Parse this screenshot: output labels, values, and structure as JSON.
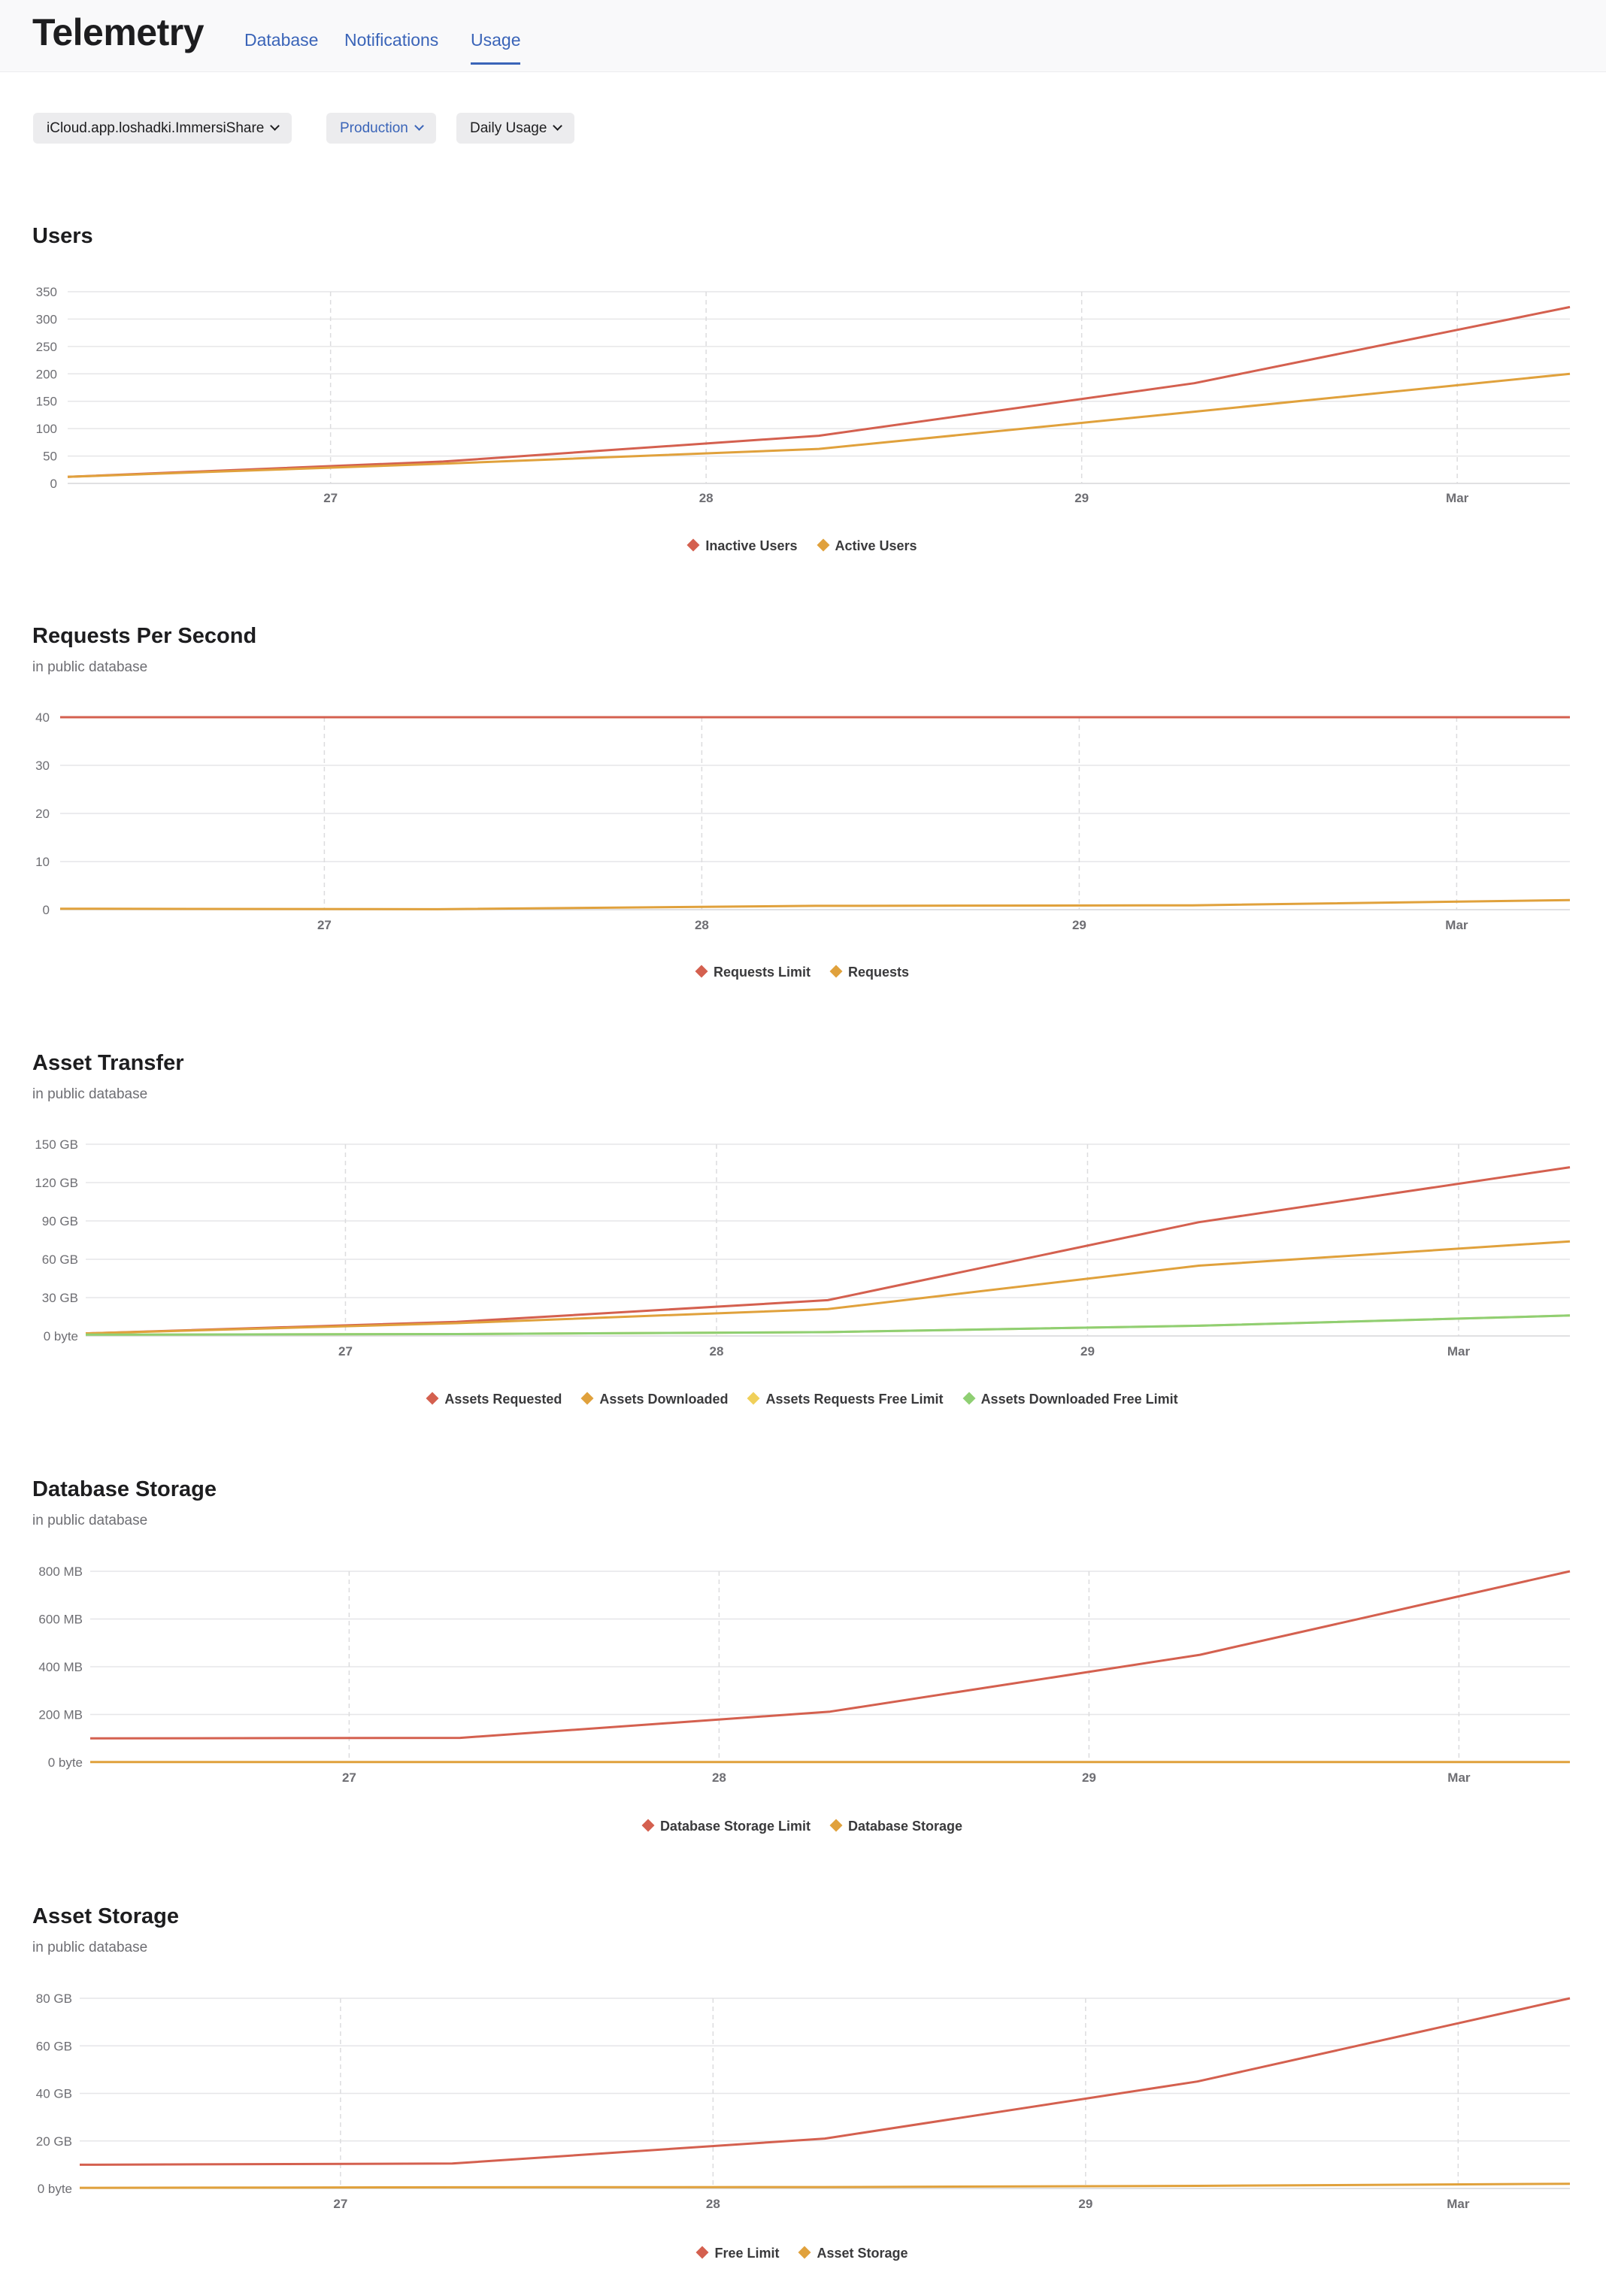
{
  "header": {
    "title": "Telemetry",
    "tabs": [
      {
        "label": "Database"
      },
      {
        "label": "Notifications"
      },
      {
        "label": "Usage"
      }
    ],
    "active_tab": "Usage"
  },
  "filters": {
    "container": "iCloud.app.loshadki.ImmersiShare",
    "environment": "Production",
    "period": "Daily Usage"
  },
  "colors": {
    "red": "#d4604f",
    "orange": "#e0a13c",
    "yellow": "#f0d05a",
    "green": "#8fcf73",
    "accent": "#3a64b8"
  },
  "chart_data": [
    {
      "id": "users",
      "type": "line",
      "title": "Users",
      "subtitle": "",
      "x_ticks": [
        "27",
        "28",
        "29",
        "Mar"
      ],
      "x_tick_days": [
        1,
        2,
        3,
        4
      ],
      "y_ticks": [
        "0",
        "50",
        "100",
        "150",
        "200",
        "250",
        "300",
        "350"
      ],
      "ylim": [
        0,
        350
      ],
      "xlim": [
        0.3,
        4.3
      ],
      "series": [
        {
          "name": "Inactive Users",
          "color": "#d4604f",
          "x": [
            0.3,
            1.3,
            2.3,
            3.3,
            4.3
          ],
          "values": [
            12,
            40,
            87,
            183,
            322
          ]
        },
        {
          "name": "Active Users",
          "color": "#e0a13c",
          "x": [
            0.3,
            1.3,
            2.3,
            3.3,
            4.3
          ],
          "values": [
            12,
            36,
            63,
            131,
            200
          ]
        }
      ]
    },
    {
      "id": "requests",
      "type": "line",
      "title": "Requests Per Second",
      "subtitle": "in public database",
      "x_ticks": [
        "27",
        "28",
        "29",
        "Mar"
      ],
      "x_tick_days": [
        1,
        2,
        3,
        4
      ],
      "y_ticks": [
        "0",
        "10",
        "20",
        "30",
        "40"
      ],
      "ylim": [
        0,
        40
      ],
      "xlim": [
        0.3,
        4.3
      ],
      "series": [
        {
          "name": "Requests Limit",
          "color": "#d4604f",
          "x": [
            0.3,
            1.3,
            2.3,
            3.3,
            4.3
          ],
          "values": [
            40,
            40,
            40,
            40,
            40
          ]
        },
        {
          "name": "Requests",
          "color": "#e0a13c",
          "x": [
            0.3,
            1.3,
            2.3,
            3.3,
            4.3
          ],
          "values": [
            0.2,
            0.1,
            0.8,
            0.9,
            2
          ]
        }
      ]
    },
    {
      "id": "asset-transfer",
      "type": "line",
      "title": "Asset Transfer",
      "subtitle": "in public database",
      "x_ticks": [
        "27",
        "28",
        "29",
        "Mar"
      ],
      "x_tick_days": [
        1,
        2,
        3,
        4
      ],
      "y_ticks": [
        "0 byte",
        "30 GB",
        "60 GB",
        "90 GB",
        "120 GB",
        "150 GB"
      ],
      "ylim": [
        0,
        150
      ],
      "xlim": [
        0.3,
        4.3
      ],
      "series": [
        {
          "name": "Assets Requested",
          "color": "#d4604f",
          "x": [
            0.3,
            1.3,
            2.3,
            3.3,
            4.3
          ],
          "values": [
            2,
            11,
            28,
            89,
            132
          ]
        },
        {
          "name": "Assets Downloaded",
          "color": "#e0a13c",
          "x": [
            0.3,
            1.3,
            2.3,
            3.3,
            4.3
          ],
          "values": [
            2,
            10,
            21,
            55,
            74
          ]
        },
        {
          "name": "Assets Requests Free Limit",
          "color": "#f0d05a",
          "x": [
            0.3,
            1.3,
            2.3,
            3.3,
            4.3
          ],
          "values": [
            1,
            1.5,
            3,
            8,
            16
          ]
        },
        {
          "name": "Assets Downloaded Free Limit",
          "color": "#8fcf73",
          "x": [
            0.3,
            1.3,
            2.3,
            3.3,
            4.3
          ],
          "values": [
            1,
            1.5,
            3,
            8,
            16
          ]
        }
      ]
    },
    {
      "id": "database-storage",
      "type": "line",
      "title": "Database Storage",
      "subtitle": "in public database",
      "x_ticks": [
        "27",
        "28",
        "29",
        "Mar"
      ],
      "x_tick_days": [
        1,
        2,
        3,
        4
      ],
      "y_ticks": [
        "0 byte",
        "200 MB",
        "400 MB",
        "600 MB",
        "800 MB"
      ],
      "ylim": [
        0,
        800
      ],
      "xlim": [
        0.3,
        4.3
      ],
      "series": [
        {
          "name": "Database Storage Limit",
          "color": "#d4604f",
          "x": [
            0.3,
            1.3,
            2.3,
            3.3,
            4.3
          ],
          "values": [
            100,
            102,
            212,
            450,
            800
          ]
        },
        {
          "name": "Database Storage",
          "color": "#e0a13c",
          "x": [
            0.3,
            1.3,
            2.3,
            3.3,
            4.3
          ],
          "values": [
            0.5,
            0.5,
            0.5,
            0.5,
            0.5
          ]
        }
      ]
    },
    {
      "id": "asset-storage",
      "type": "line",
      "title": "Asset Storage",
      "subtitle": "in public database",
      "x_ticks": [
        "27",
        "28",
        "29",
        "Mar"
      ],
      "x_tick_days": [
        1,
        2,
        3,
        4
      ],
      "y_ticks": [
        "0 byte",
        "20 GB",
        "40 GB",
        "60 GB",
        "80 GB"
      ],
      "ylim": [
        0,
        80
      ],
      "xlim": [
        0.3,
        4.3
      ],
      "series": [
        {
          "name": "Free Limit",
          "color": "#d4604f",
          "x": [
            0.3,
            1.3,
            2.3,
            3.3,
            4.3
          ],
          "values": [
            10,
            10.5,
            21,
            45,
            80
          ]
        },
        {
          "name": "Asset Storage",
          "color": "#e0a13c",
          "x": [
            0.3,
            1.3,
            2.3,
            3.3,
            4.3
          ],
          "values": [
            0.3,
            0.5,
            0.6,
            1.1,
            2
          ]
        }
      ]
    }
  ]
}
